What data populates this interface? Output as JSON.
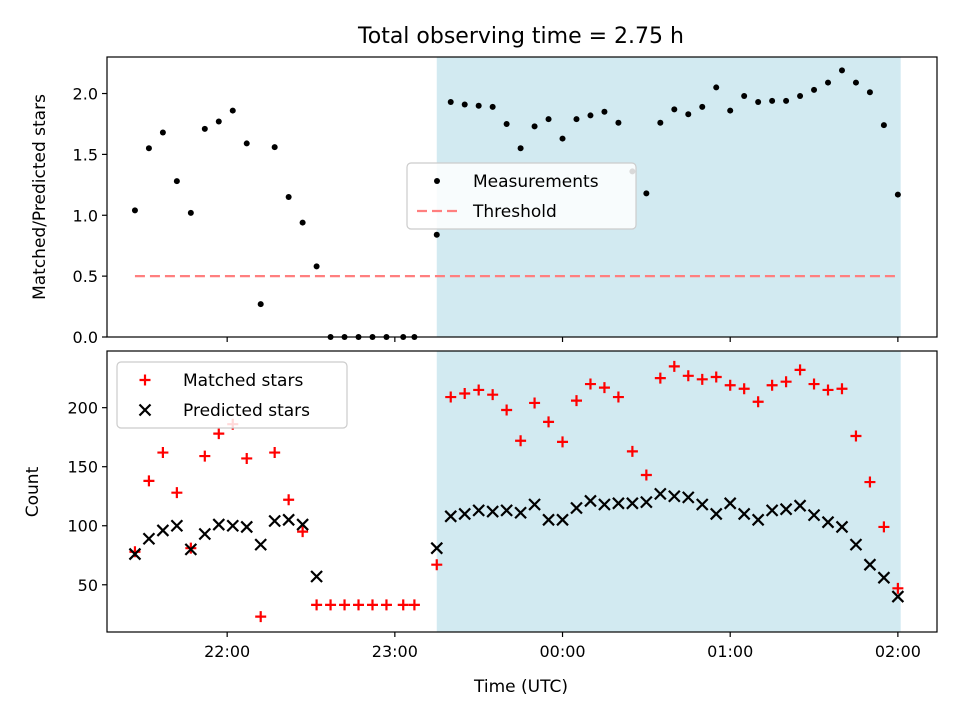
{
  "chart_data": [
    {
      "type": "scatter",
      "title": "Total observing time = 2.75 h",
      "xlabel": "",
      "ylabel": "Matched/Predicted stars",
      "xlim": [
        "21:17",
        "02:14"
      ],
      "ylim": [
        0,
        2.3
      ],
      "yticks": [
        0.0,
        0.5,
        1.0,
        1.5,
        2.0
      ],
      "ytick_labels": [
        "0.0",
        "0.5",
        "1.0",
        "1.5",
        "2.0"
      ],
      "xtick_times": [
        "22:00",
        "23:00",
        "00:00",
        "01:00",
        "02:00"
      ],
      "shaded_region": {
        "from": "23:15",
        "to": "02:01",
        "color": "#add8e6"
      },
      "legend_position": "center",
      "series": [
        {
          "name": "Measurements",
          "marker": "dot",
          "color": "#000000",
          "points": [
            [
              "21:27",
              1.04
            ],
            [
              "21:32",
              1.55
            ],
            [
              "21:37",
              1.68
            ],
            [
              "21:42",
              1.28
            ],
            [
              "21:47",
              1.02
            ],
            [
              "21:52",
              1.71
            ],
            [
              "21:57",
              1.77
            ],
            [
              "22:02",
              1.86
            ],
            [
              "22:07",
              1.59
            ],
            [
              "22:12",
              0.27
            ],
            [
              "22:17",
              1.56
            ],
            [
              "22:22",
              1.15
            ],
            [
              "22:27",
              0.94
            ],
            [
              "22:32",
              0.58
            ],
            [
              "22:37",
              0.0
            ],
            [
              "22:42",
              0.0
            ],
            [
              "22:47",
              0.0
            ],
            [
              "22:52",
              0.0
            ],
            [
              "22:57",
              0.0
            ],
            [
              "23:03",
              0.0
            ],
            [
              "23:07",
              0.0
            ],
            [
              "23:15",
              0.84
            ],
            [
              "23:20",
              1.93
            ],
            [
              "23:25",
              1.91
            ],
            [
              "23:30",
              1.9
            ],
            [
              "23:35",
              1.89
            ],
            [
              "23:40",
              1.75
            ],
            [
              "23:45",
              1.55
            ],
            [
              "23:50",
              1.73
            ],
            [
              "23:55",
              1.79
            ],
            [
              "00:00",
              1.63
            ],
            [
              "00:05",
              1.79
            ],
            [
              "00:10",
              1.82
            ],
            [
              "00:15",
              1.85
            ],
            [
              "00:20",
              1.76
            ],
            [
              "00:25",
              1.36
            ],
            [
              "00:30",
              1.18
            ],
            [
              "00:35",
              1.76
            ],
            [
              "00:40",
              1.87
            ],
            [
              "00:45",
              1.83
            ],
            [
              "00:50",
              1.89
            ],
            [
              "00:55",
              2.05
            ],
            [
              "01:00",
              1.86
            ],
            [
              "01:05",
              1.98
            ],
            [
              "01:10",
              1.93
            ],
            [
              "01:15",
              1.94
            ],
            [
              "01:20",
              1.94
            ],
            [
              "01:25",
              1.98
            ],
            [
              "01:30",
              2.03
            ],
            [
              "01:35",
              2.09
            ],
            [
              "01:40",
              2.19
            ],
            [
              "01:45",
              2.09
            ],
            [
              "01:50",
              2.01
            ],
            [
              "01:55",
              1.74
            ],
            [
              "02:00",
              1.17
            ]
          ]
        },
        {
          "name": "Threshold",
          "marker": "dashed-line",
          "color": "#ff7f7f",
          "points": [
            [
              "21:27",
              0.5
            ],
            [
              "02:00",
              0.5
            ]
          ]
        }
      ]
    },
    {
      "type": "scatter",
      "title": "",
      "xlabel": "Time (UTC)",
      "ylabel": "Count",
      "xlim": [
        "21:17",
        "02:14"
      ],
      "ylim": [
        10,
        248
      ],
      "yticks": [
        50,
        100,
        150,
        200
      ],
      "ytick_labels": [
        "50",
        "100",
        "150",
        "200"
      ],
      "xtick_times": [
        "22:00",
        "23:00",
        "00:00",
        "01:00",
        "02:00"
      ],
      "xtick_labels": [
        "22:00",
        "23:00",
        "00:00",
        "01:00",
        "02:00"
      ],
      "shaded_region": {
        "from": "23:15",
        "to": "02:01",
        "color": "#add8e6"
      },
      "legend_position": "upper left",
      "series": [
        {
          "name": "Matched stars",
          "marker": "plus",
          "color": "#ff0000",
          "points": [
            [
              "21:27",
              78
            ],
            [
              "21:32",
              138
            ],
            [
              "21:37",
              162
            ],
            [
              "21:42",
              128
            ],
            [
              "21:47",
              81
            ],
            [
              "21:52",
              159
            ],
            [
              "21:57",
              178
            ],
            [
              "22:02",
              186
            ],
            [
              "22:07",
              157
            ],
            [
              "22:12",
              23
            ],
            [
              "22:17",
              162
            ],
            [
              "22:22",
              122
            ],
            [
              "22:27",
              95
            ],
            [
              "22:32",
              33
            ],
            [
              "22:37",
              33
            ],
            [
              "22:42",
              33
            ],
            [
              "22:47",
              33
            ],
            [
              "22:52",
              33
            ],
            [
              "22:57",
              33
            ],
            [
              "23:03",
              33
            ],
            [
              "23:07",
              33
            ],
            [
              "23:15",
              67
            ],
            [
              "23:20",
              209
            ],
            [
              "23:25",
              212
            ],
            [
              "23:30",
              215
            ],
            [
              "23:35",
              211
            ],
            [
              "23:40",
              198
            ],
            [
              "23:45",
              172
            ],
            [
              "23:50",
              204
            ],
            [
              "23:55",
              188
            ],
            [
              "00:00",
              171
            ],
            [
              "00:05",
              206
            ],
            [
              "00:10",
              220
            ],
            [
              "00:15",
              217
            ],
            [
              "00:20",
              209
            ],
            [
              "00:25",
              163
            ],
            [
              "00:30",
              143
            ],
            [
              "00:35",
              225
            ],
            [
              "00:40",
              235
            ],
            [
              "00:45",
              227
            ],
            [
              "00:50",
              224
            ],
            [
              "00:55",
              226
            ],
            [
              "01:00",
              219
            ],
            [
              "01:05",
              216
            ],
            [
              "01:10",
              205
            ],
            [
              "01:15",
              219
            ],
            [
              "01:20",
              222
            ],
            [
              "01:25",
              232
            ],
            [
              "01:30",
              220
            ],
            [
              "01:35",
              215
            ],
            [
              "01:40",
              216
            ],
            [
              "01:45",
              176
            ],
            [
              "01:50",
              137
            ],
            [
              "01:55",
              99
            ],
            [
              "02:00",
              47
            ]
          ]
        },
        {
          "name": "Predicted stars",
          "marker": "x",
          "color": "#000000",
          "points": [
            [
              "21:27",
              76
            ],
            [
              "21:32",
              89
            ],
            [
              "21:37",
              96
            ],
            [
              "21:42",
              100
            ],
            [
              "21:47",
              80
            ],
            [
              "21:52",
              93
            ],
            [
              "21:57",
              101
            ],
            [
              "22:02",
              100
            ],
            [
              "22:07",
              99
            ],
            [
              "22:12",
              84
            ],
            [
              "22:17",
              104
            ],
            [
              "22:22",
              105
            ],
            [
              "22:27",
              101
            ],
            [
              "22:32",
              57
            ],
            [
              "23:15",
              81
            ],
            [
              "23:20",
              108
            ],
            [
              "23:25",
              110
            ],
            [
              "23:30",
              113
            ],
            [
              "23:35",
              112
            ],
            [
              "23:40",
              113
            ],
            [
              "23:45",
              111
            ],
            [
              "23:50",
              118
            ],
            [
              "23:55",
              105
            ],
            [
              "00:00",
              105
            ],
            [
              "00:05",
              115
            ],
            [
              "00:10",
              121
            ],
            [
              "00:15",
              118
            ],
            [
              "00:20",
              119
            ],
            [
              "00:25",
              119
            ],
            [
              "00:30",
              120
            ],
            [
              "00:35",
              127
            ],
            [
              "00:40",
              125
            ],
            [
              "00:45",
              124
            ],
            [
              "00:50",
              118
            ],
            [
              "00:55",
              110
            ],
            [
              "01:00",
              119
            ],
            [
              "01:05",
              110
            ],
            [
              "01:10",
              105
            ],
            [
              "01:15",
              113
            ],
            [
              "01:20",
              114
            ],
            [
              "01:25",
              117
            ],
            [
              "01:30",
              109
            ],
            [
              "01:35",
              103
            ],
            [
              "01:40",
              99
            ],
            [
              "01:45",
              84
            ],
            [
              "01:50",
              67
            ],
            [
              "01:55",
              56
            ],
            [
              "02:00",
              40
            ]
          ]
        }
      ]
    }
  ]
}
